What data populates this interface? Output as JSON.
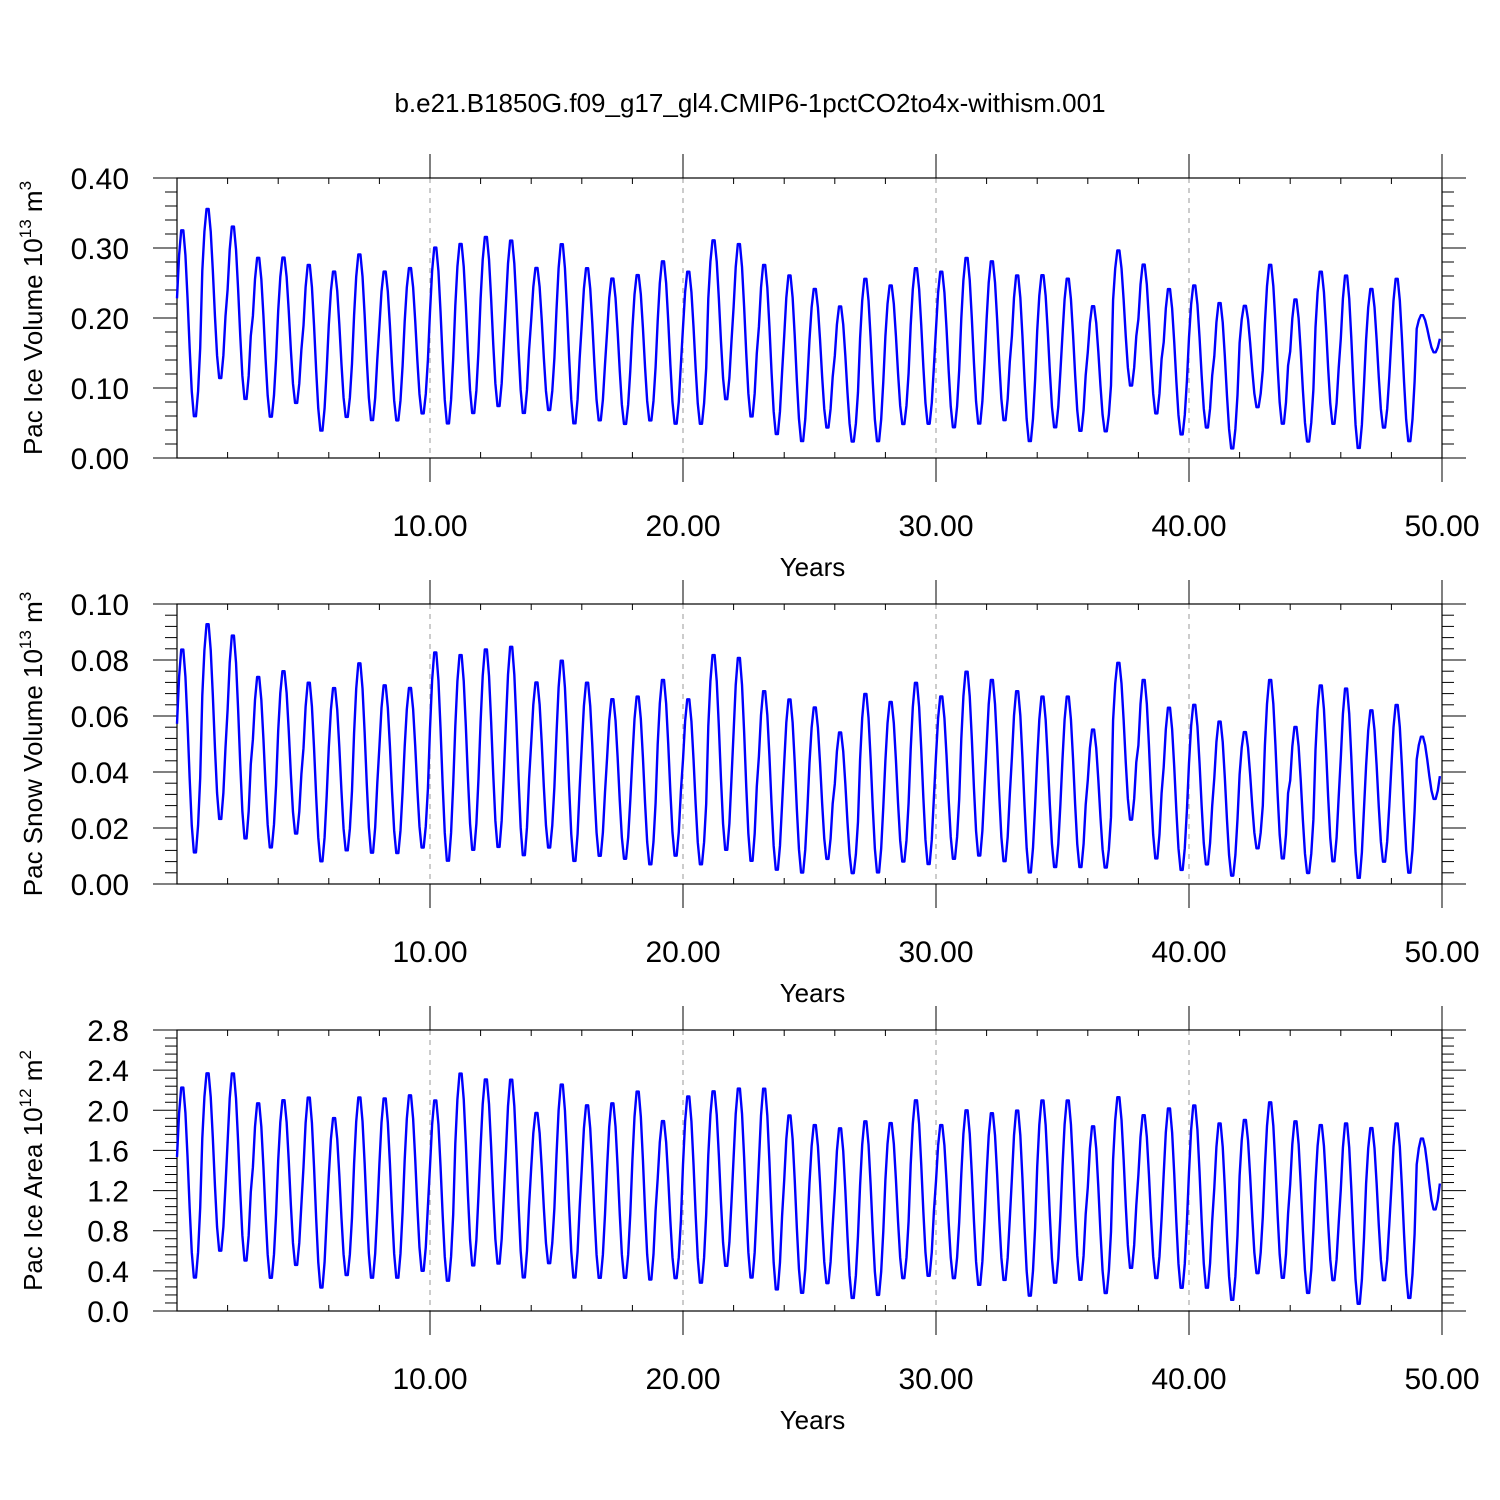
{
  "figure": {
    "title": "b.e21.B1850G.f09_g17_gl4.CMIP6-1pctCO2to4x-withism.001"
  },
  "line_color": "#0000ff",
  "chart_data": [
    {
      "type": "line",
      "title": "",
      "xlabel": "Years",
      "ylabel": {
        "main": "Pac Ice Volume 10",
        "exp": "13",
        "unit": " m",
        "unit_exp": "3"
      },
      "xlim": [
        0,
        50
      ],
      "ylim": [
        0,
        0.4
      ],
      "grid": "vertical dashed",
      "x_ticks": [
        10,
        20,
        30,
        40,
        50
      ],
      "x_tick_labels": [
        "10.00",
        "20.00",
        "30.00",
        "40.00",
        "50.00"
      ],
      "y_ticks": [
        0,
        0.1,
        0.2,
        0.3,
        0.4
      ],
      "y_tick_labels": [
        "0.00",
        "0.10",
        "0.20",
        "0.30",
        "0.40"
      ],
      "series": [
        {
          "x_start": 0,
          "x_step": 1,
          "annual_min": [
            0.055,
            0.11,
            0.08,
            0.055,
            0.075,
            0.035,
            0.055,
            0.05,
            0.05,
            0.06,
            0.045,
            0.06,
            0.07,
            0.06,
            0.065,
            0.045,
            0.05,
            0.045,
            0.05,
            0.045,
            0.045,
            0.08,
            0.055,
            0.03,
            0.02,
            0.04,
            0.02,
            0.02,
            0.045,
            0.045,
            0.04,
            0.045,
            0.05,
            0.02,
            0.04,
            0.035,
            0.035,
            0.1,
            0.06,
            0.03,
            0.04,
            0.01,
            0.07,
            0.045,
            0.02,
            0.045,
            0.01,
            0.04,
            0.02,
            0.15
          ],
          "annual_max": [
            0.33,
            0.36,
            0.335,
            0.29,
            0.29,
            0.28,
            0.27,
            0.295,
            0.27,
            0.275,
            0.305,
            0.31,
            0.32,
            0.315,
            0.275,
            0.31,
            0.275,
            0.26,
            0.265,
            0.285,
            0.27,
            0.315,
            0.31,
            0.28,
            0.265,
            0.245,
            0.22,
            0.26,
            0.25,
            0.275,
            0.27,
            0.29,
            0.285,
            0.265,
            0.265,
            0.26,
            0.22,
            0.3,
            0.28,
            0.245,
            0.25,
            0.225,
            0.22,
            0.28,
            0.23,
            0.27,
            0.265,
            0.245,
            0.26,
            0.205
          ]
        }
      ]
    },
    {
      "type": "line",
      "title": "",
      "xlabel": "Years",
      "ylabel": {
        "main": "Pac Snow Volume 10",
        "exp": "13",
        "unit": " m",
        "unit_exp": "3"
      },
      "xlim": [
        0,
        50
      ],
      "ylim": [
        0,
        0.1
      ],
      "grid": "vertical dashed",
      "x_ticks": [
        10,
        20,
        30,
        40,
        50
      ],
      "x_tick_labels": [
        "10.00",
        "20.00",
        "30.00",
        "40.00",
        "50.00"
      ],
      "y_ticks": [
        0,
        0.02,
        0.04,
        0.06,
        0.08,
        0.1
      ],
      "y_tick_labels": [
        "0.00",
        "0.02",
        "0.04",
        "0.06",
        "0.08",
        "0.10"
      ],
      "series": [
        {
          "x_start": 0,
          "x_step": 1,
          "annual_min": [
            0.01,
            0.022,
            0.015,
            0.012,
            0.017,
            0.007,
            0.011,
            0.01,
            0.01,
            0.012,
            0.007,
            0.011,
            0.012,
            0.009,
            0.012,
            0.007,
            0.009,
            0.008,
            0.006,
            0.009,
            0.006,
            0.011,
            0.007,
            0.004,
            0.003,
            0.008,
            0.003,
            0.003,
            0.007,
            0.006,
            0.008,
            0.009,
            0.007,
            0.003,
            0.005,
            0.005,
            0.005,
            0.022,
            0.008,
            0.004,
            0.006,
            0.002,
            0.012,
            0.008,
            0.003,
            0.007,
            0.001,
            0.007,
            0.003,
            0.03
          ],
          "annual_max": [
            0.085,
            0.094,
            0.09,
            0.075,
            0.077,
            0.073,
            0.071,
            0.08,
            0.072,
            0.071,
            0.084,
            0.083,
            0.085,
            0.086,
            0.073,
            0.081,
            0.073,
            0.067,
            0.068,
            0.074,
            0.067,
            0.083,
            0.082,
            0.07,
            0.067,
            0.064,
            0.055,
            0.069,
            0.066,
            0.073,
            0.068,
            0.077,
            0.074,
            0.07,
            0.068,
            0.068,
            0.056,
            0.08,
            0.074,
            0.064,
            0.065,
            0.059,
            0.055,
            0.074,
            0.057,
            0.072,
            0.071,
            0.063,
            0.065,
            0.053
          ]
        }
      ]
    },
    {
      "type": "line",
      "title": "",
      "xlabel": "Years",
      "ylabel": {
        "main": "Pac Ice Area 10",
        "exp": "12",
        "unit": " m",
        "unit_exp": "2"
      },
      "xlim": [
        0,
        50
      ],
      "ylim": [
        0,
        2.8
      ],
      "grid": "vertical dashed",
      "x_ticks": [
        10,
        20,
        30,
        40,
        50
      ],
      "x_tick_labels": [
        "10.00",
        "20.00",
        "30.00",
        "40.00",
        "50.00"
      ],
      "y_ticks": [
        0,
        0.4,
        0.8,
        1.2,
        1.6,
        2.0,
        2.4,
        2.8
      ],
      "y_tick_labels": [
        "0.0",
        "0.4",
        "0.8",
        "1.2",
        "1.6",
        "2.0",
        "2.4",
        "2.8"
      ],
      "series": [
        {
          "x_start": 0,
          "x_step": 1,
          "annual_min": [
            0.3,
            0.57,
            0.47,
            0.3,
            0.43,
            0.2,
            0.33,
            0.3,
            0.3,
            0.37,
            0.27,
            0.42,
            0.44,
            0.3,
            0.45,
            0.3,
            0.3,
            0.3,
            0.28,
            0.3,
            0.25,
            0.42,
            0.3,
            0.18,
            0.15,
            0.25,
            0.1,
            0.13,
            0.3,
            0.32,
            0.3,
            0.23,
            0.28,
            0.12,
            0.25,
            0.28,
            0.15,
            0.4,
            0.3,
            0.2,
            0.2,
            0.08,
            0.35,
            0.3,
            0.15,
            0.28,
            0.04,
            0.28,
            0.1,
            1.0
          ],
          "annual_max": [
            2.26,
            2.4,
            2.4,
            2.1,
            2.13,
            2.16,
            1.95,
            2.16,
            2.15,
            2.18,
            2.13,
            2.4,
            2.34,
            2.34,
            2.0,
            2.29,
            2.08,
            2.1,
            2.22,
            1.92,
            2.17,
            2.22,
            2.25,
            2.25,
            1.98,
            1.88,
            1.85,
            1.92,
            1.9,
            2.13,
            1.88,
            2.03,
            2.0,
            2.03,
            2.13,
            2.13,
            1.87,
            2.16,
            1.98,
            2.05,
            2.08,
            1.9,
            1.93,
            2.11,
            1.92,
            1.88,
            1.9,
            1.85,
            1.9,
            1.73
          ]
        }
      ]
    }
  ]
}
